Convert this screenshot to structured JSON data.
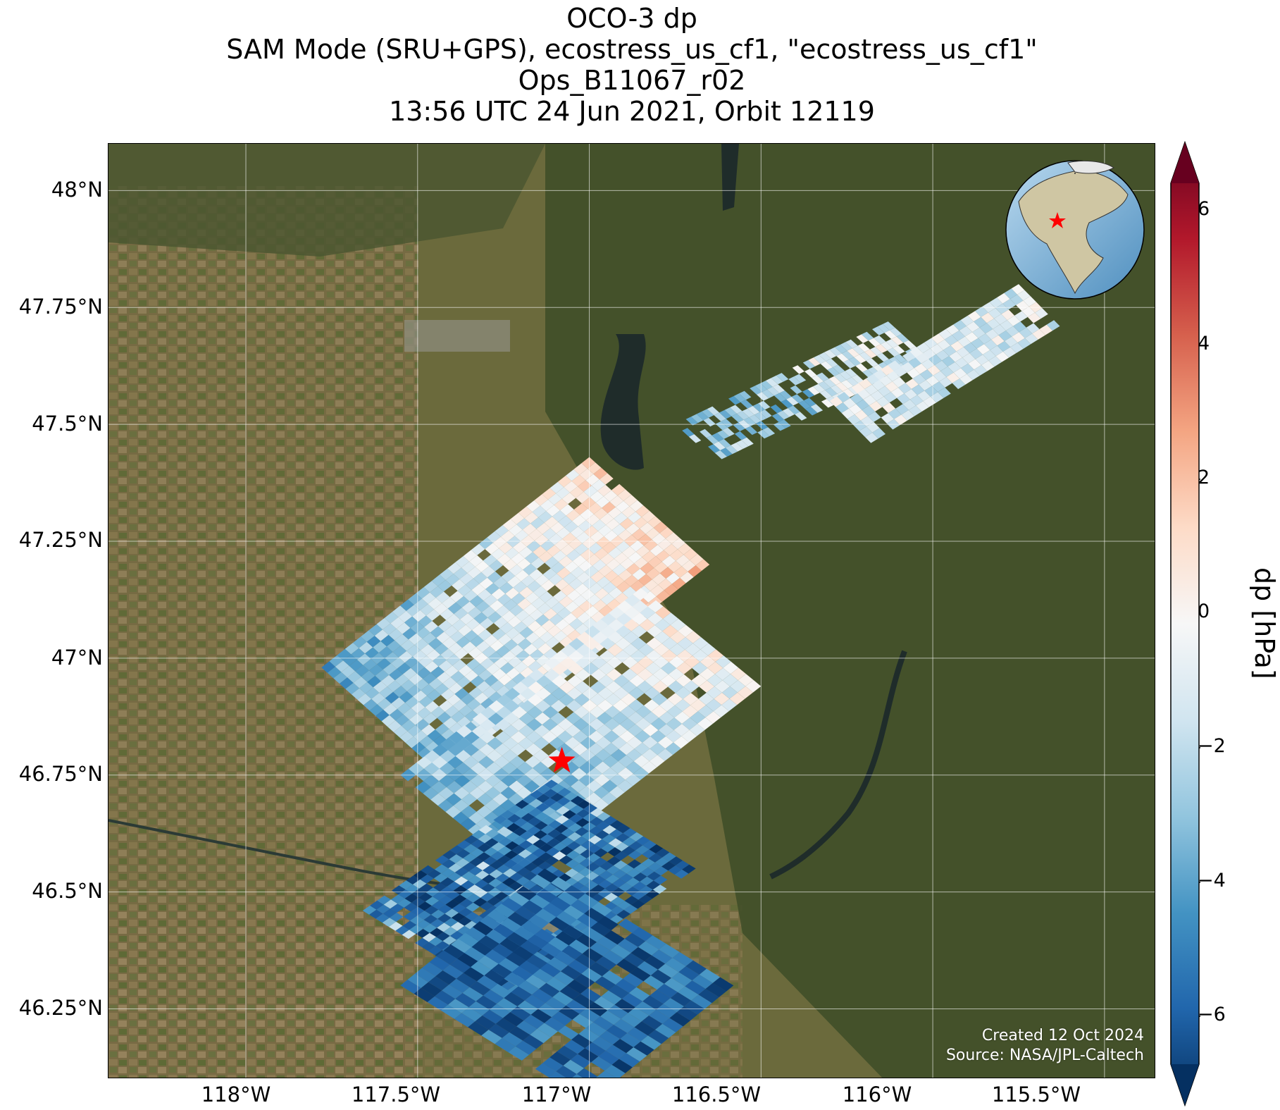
{
  "title": {
    "line1": "OCO-3 dp",
    "line2": "SAM Mode (SRU+GPS), ecostress_us_cf1, \"ecostress_us_cf1\"",
    "line3": "Ops_B11067_r02",
    "line4": "13:56 UTC 24 Jun 2021, Orbit 12119"
  },
  "map": {
    "lon_range": [
      -118.4,
      -115.35
    ],
    "lat_range": [
      46.1,
      48.1
    ],
    "lon_ticks": [
      "118°W",
      "117.5°W",
      "117°W",
      "116.5°W",
      "116°W",
      "115.5°W"
    ],
    "lat_ticks": [
      "48°N",
      "47.75°N",
      "47.5°N",
      "47.25°N",
      "47°N",
      "46.75°N",
      "46.5°N",
      "46.25°N"
    ],
    "target_marker": {
      "lon": -117.08,
      "lat": 46.78,
      "color": "#ff0000"
    },
    "inset_globe_icon": "globe-icon",
    "colors": {
      "background_land": "#6b6a3c",
      "forest": "#3a4a25",
      "water": "#2b3a35"
    }
  },
  "colorbar": {
    "label": "dp [hPa]",
    "min": -6,
    "max": 6,
    "ticks": [
      "6",
      "4",
      "2",
      "0",
      "−2",
      "−4",
      "−6"
    ],
    "colormap": "RdBu_r",
    "colors": [
      "#053061",
      "#2166ac",
      "#4393c3",
      "#92c5de",
      "#d1e5f0",
      "#f7f7f7",
      "#fddbc7",
      "#f4a582",
      "#d6604d",
      "#b2182b",
      "#67001f"
    ]
  },
  "credit": {
    "line1": "Created 12 Oct 2024",
    "line2": "Source: NASA/JPL-Caltech"
  },
  "chart_data": {
    "type": "heatmap",
    "title": "OCO-3 dp",
    "colorbar_label": "dp [hPa]",
    "vmin": -6,
    "vmax": 6,
    "regions": [
      {
        "name": "",
        "lon_center": -117.45,
        "lat_center": 46.45,
        "approx_dp": -5.0
      },
      {
        "name": "",
        "lon_center": -117.0,
        "lat_center": 46.68,
        "approx_dp": -4.5
      },
      {
        "name": "",
        "lon_center": -117.6,
        "lat_center": 46.95,
        "approx_dp": -2.5
      },
      {
        "name": "",
        "lon_center": -117.15,
        "lat_center": 46.95,
        "approx_dp": 0.5
      },
      {
        "name": "",
        "lon_center": -117.5,
        "lat_center": 47.15,
        "approx_dp": -1.5
      },
      {
        "name": "",
        "lon_center": -117.05,
        "lat_center": 47.3,
        "approx_dp": 1.0
      },
      {
        "name": "",
        "lon_center": -116.1,
        "lat_center": 47.62,
        "approx_dp": -1.0
      },
      {
        "name": "",
        "lon_center": -115.75,
        "lat_center": 47.75,
        "approx_dp": -2.0
      }
    ]
  }
}
